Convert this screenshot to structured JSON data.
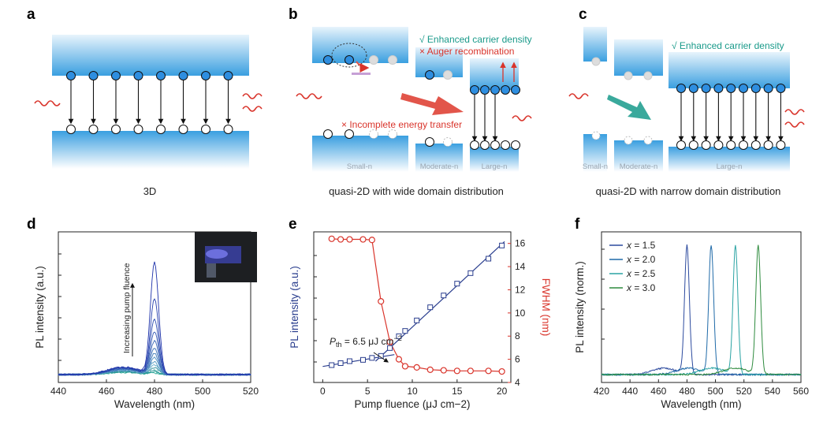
{
  "panels": {
    "a": {
      "label": "a",
      "caption": "3D"
    },
    "b": {
      "label": "b",
      "caption": "quasi-2D with wide domain distribution",
      "note_enhanced": "√ Enhanced carrier density",
      "note_auger": "× Auger recombination",
      "note_incomplete": "× Incomplete energy transfer",
      "region_labels": [
        "Small-n",
        "Moderate-n",
        "Large-n"
      ]
    },
    "c": {
      "label": "c",
      "caption": "quasi-2D with narrow domain distribution",
      "note_enhanced": "√ Enhanced carrier density",
      "region_labels": [
        "Small-n",
        "Moderate-n",
        "Large-n"
      ]
    },
    "d": {
      "label": "d",
      "annotation": "Increasing pump fluence"
    },
    "e": {
      "label": "e",
      "threshold_label": "P",
      "threshold_sub": "th",
      "threshold_value": " = 6.5 μJ cm",
      "threshold_exp": "−2"
    },
    "f": {
      "label": "f"
    }
  },
  "colors": {
    "band_top": "#3a9fe0",
    "band_light": "#e6f3fc",
    "red": "#d9342b",
    "teal": "#1a9a8a",
    "navy": "#2a3e8e",
    "arrow_red": "#e2554a",
    "arrow_teal": "#3aa99c"
  },
  "chart_data": [
    {
      "id": "d",
      "type": "line",
      "xlabel": "Wavelength (nm)",
      "ylabel": "PL intensity (a.u.)",
      "xlim": [
        440,
        520
      ],
      "xticks": [
        440,
        460,
        480,
        500,
        520
      ],
      "peak_nm": 480,
      "series_count": 14,
      "peak_heights_relative": [
        0.01,
        0.02,
        0.03,
        0.05,
        0.07,
        0.09,
        0.12,
        0.15,
        0.19,
        0.24,
        0.31,
        0.4,
        0.55,
        0.82
      ],
      "broad_emission_nm": 467
    },
    {
      "id": "e",
      "type": "scatter",
      "xlabel": "Pump fluence (μJ cm−2)",
      "ylabel_left": "PL intensity (a.u.)",
      "ylabel_right": "FWHM (nm)",
      "xlim": [
        -1,
        21
      ],
      "xticks": [
        0,
        5,
        10,
        15,
        20
      ],
      "y2lim": [
        4,
        17
      ],
      "y2ticks": [
        4,
        6,
        8,
        10,
        12,
        14,
        16
      ],
      "series": [
        {
          "name": "PL intensity",
          "axis": "left",
          "x": [
            1.0,
            2.0,
            3.0,
            4.5,
            5.5,
            6.5,
            7.5,
            8.5,
            9.2,
            10.5,
            12.0,
            13.5,
            15.0,
            16.5,
            18.5,
            20.0
          ],
          "y": [
            0.6,
            0.75,
            0.9,
            1.0,
            1.15,
            1.3,
            1.9,
            2.8,
            3.2,
            4.0,
            5.0,
            5.9,
            6.8,
            7.6,
            8.7,
            9.7
          ]
        },
        {
          "name": "FWHM",
          "axis": "right",
          "x": [
            1.0,
            2.0,
            3.0,
            4.5,
            5.5,
            6.5,
            7.5,
            8.5,
            9.2,
            10.5,
            12.0,
            13.5,
            15.0,
            16.5,
            18.5,
            20.0
          ],
          "y": [
            16.4,
            16.35,
            16.35,
            16.35,
            16.3,
            11.0,
            7.5,
            6.0,
            5.4,
            5.3,
            5.1,
            5.05,
            5.0,
            5.0,
            5.0,
            4.95
          ]
        }
      ]
    },
    {
      "id": "f",
      "type": "line",
      "xlabel": "Wavelength (nm)",
      "ylabel": "PL intensity (norm.)",
      "xlim": [
        420,
        560
      ],
      "xticks": [
        420,
        440,
        460,
        480,
        500,
        520,
        540,
        560
      ],
      "legend_prefix": "x",
      "series": [
        {
          "name": "1.5",
          "peak_nm": 480,
          "color": "#2c4a9e"
        },
        {
          "name": "2.0",
          "peak_nm": 497,
          "color": "#1f6aa8"
        },
        {
          "name": "2.5",
          "peak_nm": 514,
          "color": "#2aa3a3"
        },
        {
          "name": "3.0",
          "peak_nm": 530,
          "color": "#2e8b3e"
        }
      ]
    }
  ]
}
